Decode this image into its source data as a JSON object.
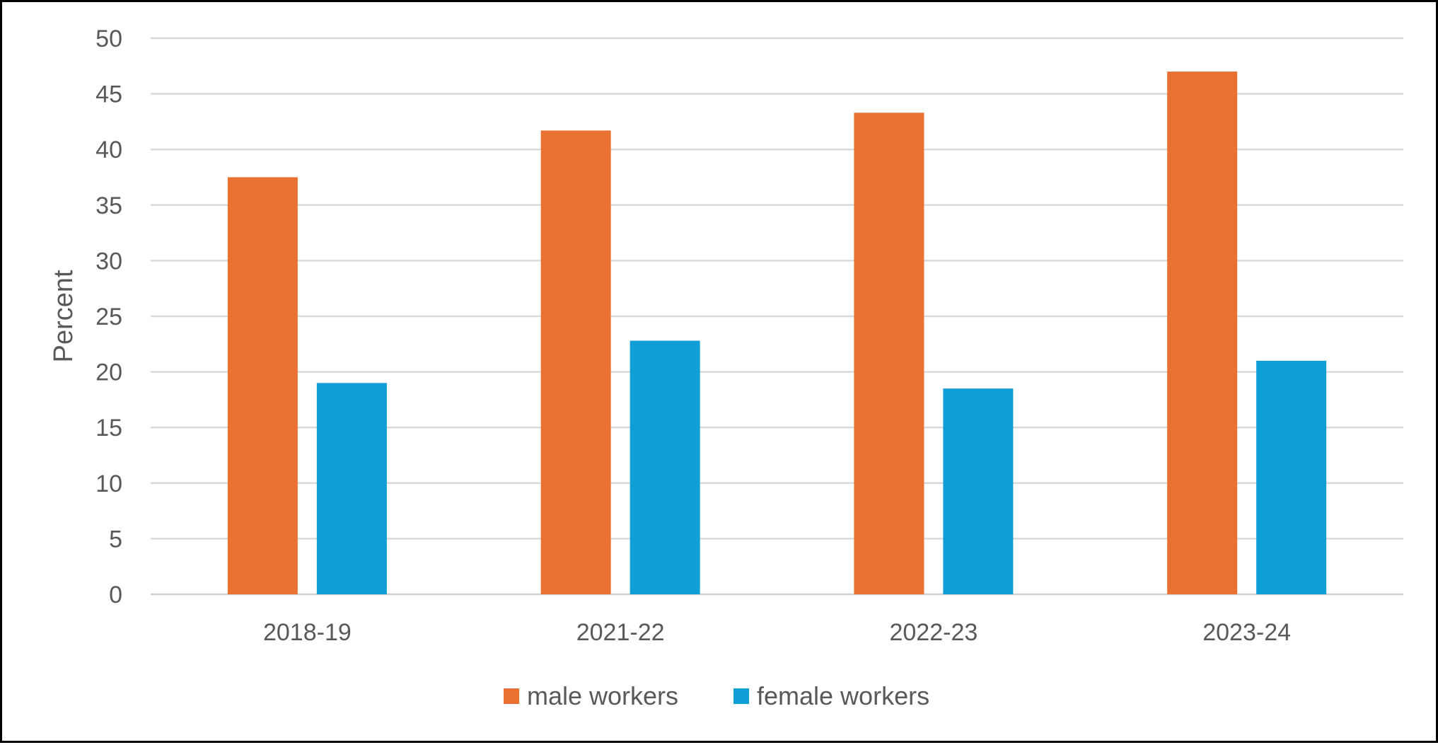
{
  "chart_data": {
    "type": "bar",
    "categories": [
      "2018-19",
      "2021-22",
      "2022-23",
      "2023-24"
    ],
    "series": [
      {
        "name": "male workers",
        "values": [
          37.5,
          41.7,
          43.3,
          47.0
        ],
        "color": "#E97132"
      },
      {
        "name": "female workers",
        "values": [
          19.0,
          22.8,
          18.5,
          21.0
        ],
        "color": "#0F9ED5"
      }
    ],
    "title": "",
    "xlabel": "",
    "ylabel": "Percent",
    "ylim": [
      0,
      50
    ],
    "yticks": [
      0,
      5,
      10,
      15,
      20,
      25,
      30,
      35,
      40,
      45,
      50
    ],
    "grid": true,
    "legend_position": "bottom"
  }
}
